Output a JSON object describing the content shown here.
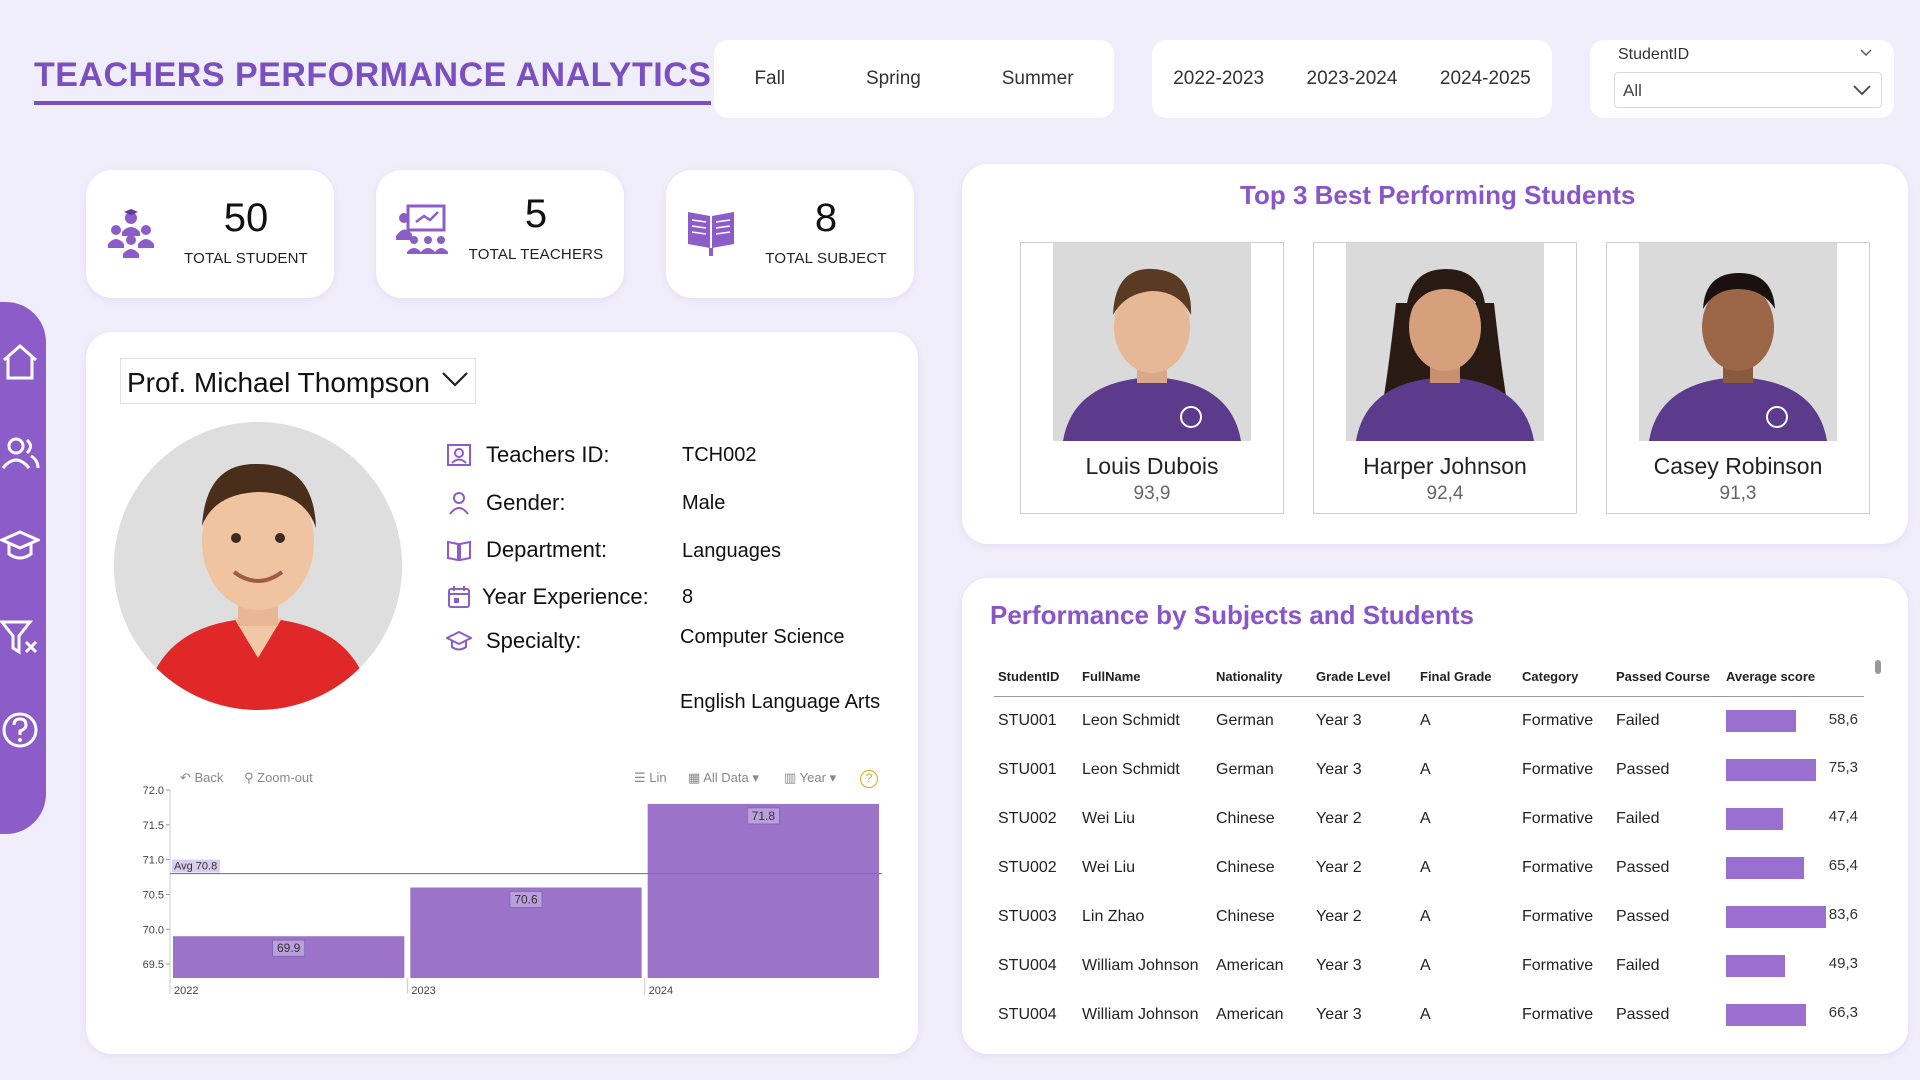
{
  "header": {
    "title": "TEACHERS  PERFORMANCE ANALYTICS"
  },
  "season_slicer": [
    "Fall",
    "Spring",
    "Summer"
  ],
  "year_slicer": [
    "2022-2023",
    "2023-2024",
    "2024-2025"
  ],
  "student_slicer": {
    "label": "StudentID",
    "value": "All"
  },
  "kpis": [
    {
      "value": "50",
      "caption": "TOTAL STUDENT",
      "icon": "students-icon"
    },
    {
      "value": "5",
      "caption": "TOTAL TEACHERS",
      "icon": "teacher-icon"
    },
    {
      "value": "8",
      "caption": "TOTAL SUBJECT",
      "icon": "book-icon"
    }
  ],
  "sidebar": [
    "home-icon",
    "users-icon",
    "graduation-cap-icon",
    "clear-filter-icon",
    "help-icon"
  ],
  "teacher": {
    "selected": "Prof. Michael Thompson",
    "fields": [
      {
        "label": "Teachers ID:",
        "value": "TCH002",
        "icon": "id-card-icon"
      },
      {
        "label": "Gender:",
        "value": "Male",
        "icon": "person-icon"
      },
      {
        "label": "Department:",
        "value": "Languages",
        "icon": "open-book-icon"
      },
      {
        "label": "Year Experience:",
        "value": "8",
        "icon": "calendar-icon"
      },
      {
        "label": "Specialty:",
        "value": "Computer Science",
        "icon": "graduation-cap-icon"
      }
    ],
    "specialty_extra": "English Language Arts"
  },
  "chart_toolbar": {
    "back": "Back",
    "zoom_out": "Zoom-out",
    "scale": "Lin",
    "data": "All Data",
    "group": "Year",
    "help": "?"
  },
  "chart_data": {
    "type": "bar",
    "categories": [
      "2022",
      "2023",
      "2024"
    ],
    "values": [
      69.9,
      70.6,
      71.8
    ],
    "value_labels": [
      "69.9",
      "70.6",
      "71.8"
    ],
    "avg": 70.8,
    "avg_label": "Avg 70.8",
    "ylim": [
      69.3,
      72.0
    ],
    "yticks": [
      72.0,
      71.5,
      71.0,
      70.5,
      70.0,
      69.5
    ],
    "ytick_labels": [
      "72.0",
      "71.5",
      "71.0",
      "70.5",
      "70.0",
      "69.5"
    ],
    "bar_color": "#9b73c9"
  },
  "top3": {
    "title": "Top 3 Best Performing Students",
    "students": [
      {
        "name": "Louis Dubois",
        "score": "93,9"
      },
      {
        "name": "Harper Johnson",
        "score": "92,4"
      },
      {
        "name": "Casey Robinson",
        "score": "91,3"
      }
    ]
  },
  "performance": {
    "title": "Performance by Subjects and Students",
    "columns": [
      "StudentID",
      "FullName",
      "Nationality",
      "Grade Level",
      "Final Grade",
      "Category",
      "Passed Course",
      "Average score"
    ],
    "rows": [
      {
        "id": "STU001",
        "name": "Leon Schmidt",
        "nat": "German",
        "grade": "Year 3",
        "final": "A",
        "cat": "Formative",
        "passed": "Failed",
        "score": 58.6,
        "score_label": "58,6"
      },
      {
        "id": "STU001",
        "name": "Leon Schmidt",
        "nat": "German",
        "grade": "Year 3",
        "final": "A",
        "cat": "Formative",
        "passed": "Passed",
        "score": 75.3,
        "score_label": "75,3"
      },
      {
        "id": "STU002",
        "name": "Wei Liu",
        "nat": "Chinese",
        "grade": "Year 2",
        "final": "A",
        "cat": "Formative",
        "passed": "Failed",
        "score": 47.4,
        "score_label": "47,4"
      },
      {
        "id": "STU002",
        "name": "Wei Liu",
        "nat": "Chinese",
        "grade": "Year 2",
        "final": "A",
        "cat": "Formative",
        "passed": "Passed",
        "score": 65.4,
        "score_label": "65,4"
      },
      {
        "id": "STU003",
        "name": "Lin Zhao",
        "nat": "Chinese",
        "grade": "Year 2",
        "final": "A",
        "cat": "Formative",
        "passed": "Passed",
        "score": 83.6,
        "score_label": "83,6"
      },
      {
        "id": "STU004",
        "name": "William Johnson",
        "nat": "American",
        "grade": "Year 3",
        "final": "A",
        "cat": "Formative",
        "passed": "Failed",
        "score": 49.3,
        "score_label": "49,3"
      },
      {
        "id": "STU004",
        "name": "William Johnson",
        "nat": "American",
        "grade": "Year 3",
        "final": "A",
        "cat": "Formative",
        "passed": "Passed",
        "score": 66.3,
        "score_label": "66,3"
      }
    ]
  },
  "colors": {
    "accent": "#7a4fc0",
    "bar": "#9b6fd0",
    "background": "#f1eefb"
  }
}
